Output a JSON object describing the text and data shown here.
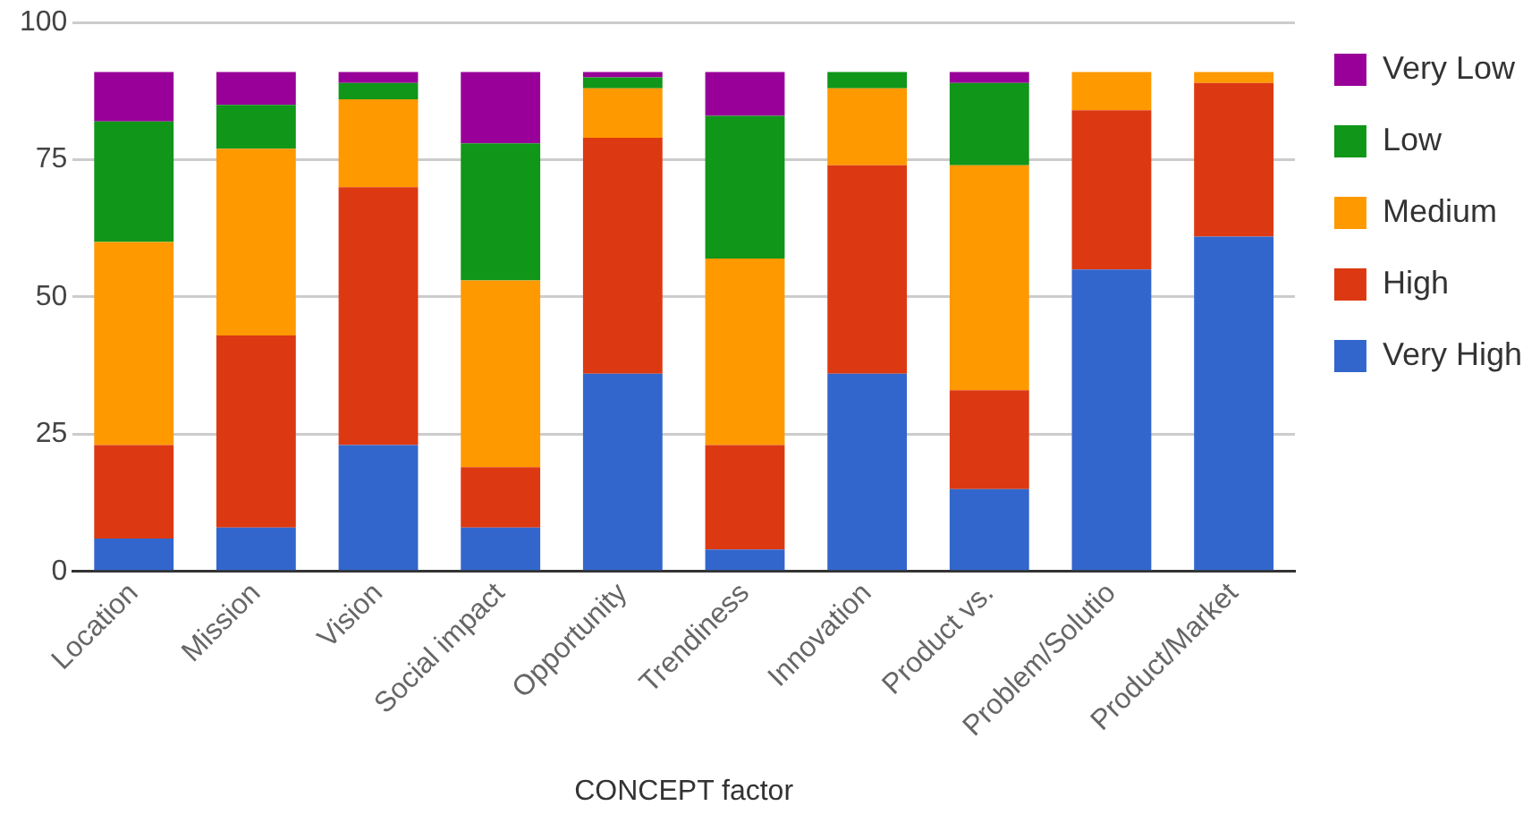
{
  "chart_data": {
    "type": "bar",
    "stacked": true,
    "xlabel": "CONCEPT factor",
    "categories": [
      "Location",
      "Mission",
      "Vision",
      "Social impact",
      "Opportunity",
      "Trendiness",
      "Innovation",
      "Product vs.",
      "Problem/Solutio",
      "Product/Market"
    ],
    "series": [
      {
        "name": "Very High",
        "color": "#3366cc",
        "values": [
          6,
          8,
          23,
          8,
          36,
          4,
          36,
          15,
          55,
          61
        ]
      },
      {
        "name": "High",
        "color": "#dc3912",
        "values": [
          17,
          35,
          47,
          11,
          43,
          19,
          38,
          18,
          29,
          28
        ]
      },
      {
        "name": "Medium",
        "color": "#ff9900",
        "values": [
          37,
          34,
          16,
          34,
          9,
          34,
          14,
          41,
          7,
          2
        ]
      },
      {
        "name": "Low",
        "color": "#109618",
        "values": [
          22,
          8,
          3,
          25,
          2,
          26,
          3,
          15,
          0,
          0
        ]
      },
      {
        "name": "Very Low",
        "color": "#990099",
        "values": [
          9,
          6,
          2,
          13,
          1,
          8,
          0,
          2,
          0,
          0
        ]
      }
    ],
    "ylim": [
      0,
      100
    ],
    "yticks": [
      0,
      25,
      50,
      75,
      100
    ],
    "grid": "y",
    "legend": "top right"
  }
}
